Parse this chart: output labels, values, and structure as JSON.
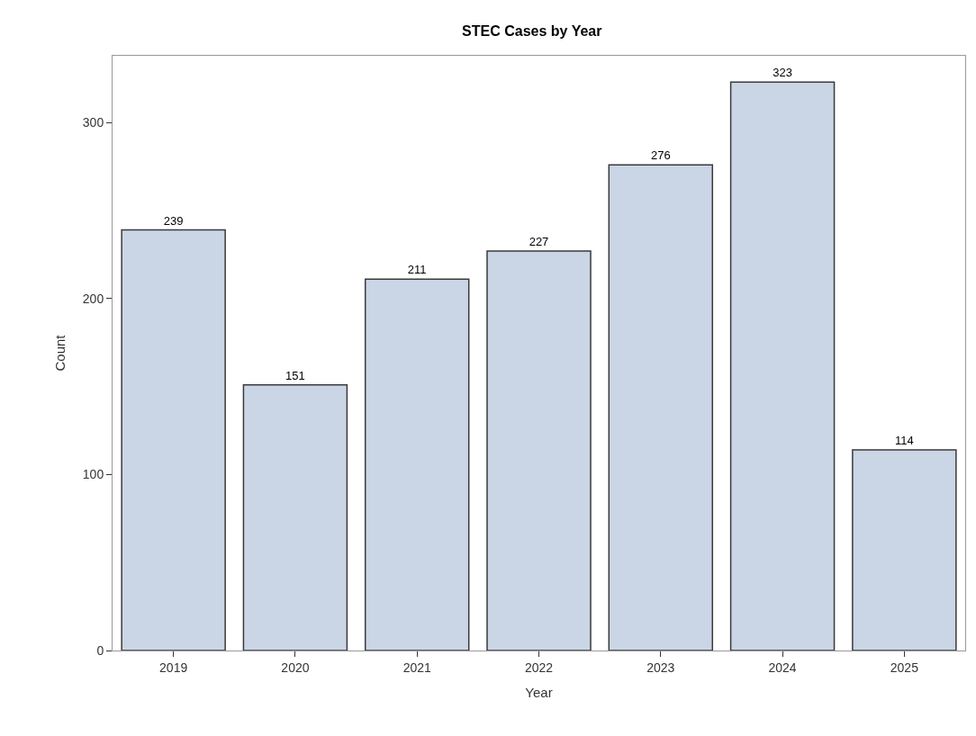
{
  "chart_data": {
    "type": "bar",
    "title": "STEC Cases by Year",
    "xlabel": "Year",
    "ylabel": "Count",
    "categories": [
      "2019",
      "2020",
      "2021",
      "2022",
      "2023",
      "2024",
      "2025"
    ],
    "values": [
      239,
      151,
      211,
      227,
      276,
      323,
      114
    ],
    "color": "#cad5e5",
    "data_labels": true,
    "ylim": [
      0,
      338
    ],
    "yticks": [
      0,
      100,
      200,
      300
    ]
  }
}
